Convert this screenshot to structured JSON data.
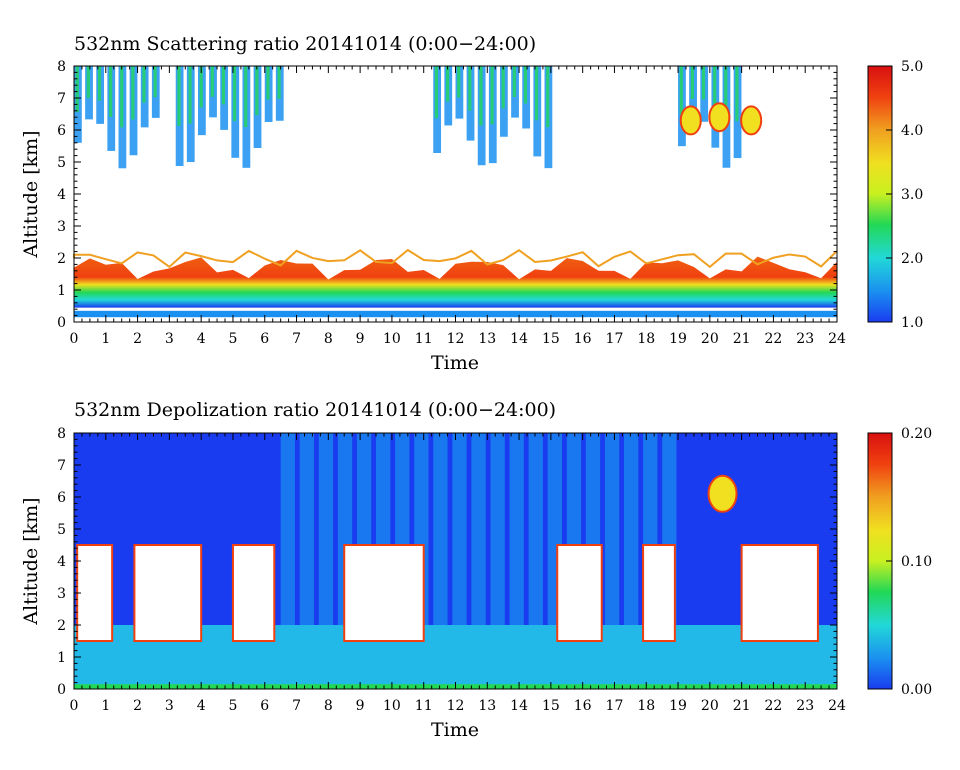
{
  "chart_data": [
    {
      "type": "heatmap",
      "title": "532nm Scattering ratio  20141014 (0:00−24:00)",
      "xlabel": "Time",
      "ylabel": "Altitude [km]",
      "xlim": [
        0,
        24
      ],
      "ylim": [
        0,
        8
      ],
      "x_ticks": [
        "0",
        "1",
        "2",
        "3",
        "4",
        "5",
        "6",
        "7",
        "8",
        "9",
        "10",
        "11",
        "12",
        "13",
        "14",
        "15",
        "16",
        "17",
        "18",
        "19",
        "20",
        "21",
        "22",
        "23",
        "24"
      ],
      "y_ticks": [
        "0",
        "1",
        "2",
        "3",
        "4",
        "5",
        "6",
        "7",
        "8"
      ],
      "colorbar": {
        "range": [
          1.0,
          5.0
        ],
        "tick_labels": [
          "1.0",
          "2.0",
          "3.0",
          "4.0",
          "5.0"
        ],
        "colors": [
          "#1a3cf0",
          "#1a90f0",
          "#22d8d8",
          "#22d855",
          "#c8f020",
          "#f0e020",
          "#f0a020",
          "#f04010",
          "#d81010"
        ]
      },
      "features": {
        "aerosol_layer_base_km": 0.45,
        "aerosol_layer_top_km": 1.7,
        "boundary_layer_top_km": 2.0,
        "upper_cloud_periods_h": [
          [
            0,
            2.5
          ],
          [
            3.2,
            6.5
          ],
          [
            11.3,
            15.0
          ],
          [
            19.0,
            21.0
          ]
        ],
        "high_ratio_cloud_near_km": 6.3
      }
    },
    {
      "type": "heatmap",
      "title": "532nm Depolization ratio  20141014 (0:00−24:00)",
      "xlabel": "Time",
      "ylabel": "Altitude [km]",
      "xlim": [
        0,
        24
      ],
      "ylim": [
        0,
        8
      ],
      "x_ticks": [
        "0",
        "1",
        "2",
        "3",
        "4",
        "5",
        "6",
        "7",
        "8",
        "9",
        "10",
        "11",
        "12",
        "13",
        "14",
        "15",
        "16",
        "17",
        "18",
        "19",
        "20",
        "21",
        "22",
        "23",
        "24"
      ],
      "y_ticks": [
        "0",
        "1",
        "2",
        "3",
        "4",
        "5",
        "6",
        "7",
        "8"
      ],
      "colorbar": {
        "range": [
          0.0,
          0.2
        ],
        "tick_labels": [
          "0.00",
          "0.10",
          "0.20"
        ],
        "colors": [
          "#1a3cf0",
          "#1a90f0",
          "#22d8d8",
          "#22d855",
          "#c8f020",
          "#f0e020",
          "#f0a020",
          "#f04010",
          "#d81010"
        ]
      },
      "features": {
        "cloud_gap_periods_h": [
          [
            0.1,
            1.2
          ],
          [
            1.9,
            4.0
          ],
          [
            5.0,
            6.3
          ],
          [
            8.5,
            11.0
          ],
          [
            15.2,
            16.6
          ],
          [
            17.9,
            18.9
          ],
          [
            21.0,
            23.4
          ]
        ],
        "cloud_gap_altitude_km": [
          1.5,
          4.5
        ]
      }
    }
  ]
}
